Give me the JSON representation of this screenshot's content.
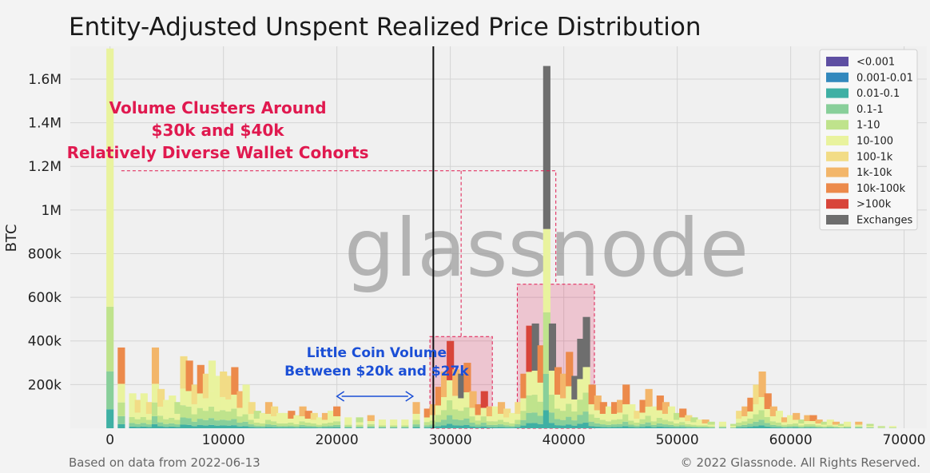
{
  "chart_data": {
    "type": "bar",
    "stacked": true,
    "title": "Entity-Adjusted Unspent Realized Price Distribution",
    "xlabel": "",
    "ylabel": "BTC",
    "xlim": [
      -3500,
      72000
    ],
    "ylim": [
      0,
      1750000
    ],
    "bin_width": 700,
    "x_ticks": [
      0,
      10000,
      20000,
      30000,
      40000,
      50000,
      60000,
      70000
    ],
    "x_tick_labels": [
      "0",
      "10000",
      "20000",
      "30000",
      "40000",
      "50000",
      "60000",
      "70000"
    ],
    "y_ticks": [
      200000,
      400000,
      600000,
      800000,
      1000000,
      1200000,
      1400000,
      1600000
    ],
    "y_tick_labels": [
      "200k",
      "400k",
      "600k",
      "800k",
      "1M",
      "1.2M",
      "1.4M",
      "1.6M"
    ],
    "grid": true,
    "legend_position": "top-right",
    "cohorts": [
      {
        "name": "<0.001",
        "color": "#5e4fa2"
      },
      {
        "name": "0.001-0.01",
        "color": "#3288bd"
      },
      {
        "name": "0.01-0.1",
        "color": "#3fb0a4"
      },
      {
        "name": "0.1-1",
        "color": "#88cf9a"
      },
      {
        "name": "1-10",
        "color": "#bfe38c"
      },
      {
        "name": "10-100",
        "color": "#e9f39e"
      },
      {
        "name": "100-1k",
        "color": "#f2dc86"
      },
      {
        "name": "1k-10k",
        "color": "#f3b66a"
      },
      {
        "name": "10k-100k",
        "color": "#ec8a4b"
      },
      {
        "name": ">100k",
        "color": "#d8453a"
      },
      {
        "name": "Exchanges",
        "color": "#6e6e6e"
      }
    ],
    "x": [
      0,
      1000,
      2000,
      2500,
      3000,
      3500,
      4000,
      4500,
      5000,
      5500,
      6000,
      6500,
      7000,
      7500,
      8000,
      8500,
      9000,
      9500,
      10000,
      10500,
      11000,
      11500,
      12000,
      12500,
      13000,
      13500,
      14000,
      14500,
      15000,
      15500,
      16000,
      16500,
      17000,
      17500,
      18000,
      18500,
      19000,
      19500,
      20000,
      21000,
      22000,
      23000,
      24000,
      25000,
      26000,
      27000,
      28000,
      28500,
      29000,
      29500,
      30000,
      30500,
      31000,
      31500,
      32000,
      32500,
      33000,
      33500,
      34000,
      34500,
      35000,
      35500,
      36000,
      36500,
      37000,
      37500,
      38000,
      38500,
      39000,
      39500,
      40000,
      40500,
      41000,
      41500,
      42000,
      42500,
      43000,
      43500,
      44000,
      44500,
      45000,
      45500,
      46000,
      46500,
      47000,
      47500,
      48000,
      48500,
      49000,
      49500,
      50000,
      50500,
      51000,
      51500,
      52000,
      52500,
      53000,
      54000,
      55000,
      55500,
      56000,
      56500,
      57000,
      57500,
      58000,
      58500,
      59000,
      59500,
      60000,
      60500,
      61000,
      61500,
      62000,
      62500,
      63000,
      63500,
      64000,
      64500,
      65000,
      66000,
      67000,
      68000,
      69000
    ],
    "totals": [
      1740000,
      370000,
      160000,
      130000,
      160000,
      120000,
      370000,
      180000,
      130000,
      150000,
      120000,
      330000,
      310000,
      200000,
      290000,
      250000,
      310000,
      240000,
      260000,
      240000,
      280000,
      170000,
      200000,
      120000,
      80000,
      70000,
      120000,
      100000,
      70000,
      70000,
      80000,
      60000,
      100000,
      80000,
      70000,
      50000,
      70000,
      80000,
      100000,
      50000,
      50000,
      60000,
      40000,
      40000,
      40000,
      120000,
      90000,
      110000,
      190000,
      260000,
      400000,
      270000,
      250000,
      300000,
      170000,
      110000,
      170000,
      100000,
      100000,
      120000,
      90000,
      70000,
      120000,
      250000,
      470000,
      480000,
      380000,
      1660000,
      480000,
      280000,
      250000,
      350000,
      240000,
      410000,
      510000,
      200000,
      150000,
      120000,
      100000,
      120000,
      130000,
      200000,
      110000,
      80000,
      130000,
      180000,
      100000,
      150000,
      120000,
      100000,
      70000,
      90000,
      60000,
      50000,
      40000,
      40000,
      30000,
      30000,
      20000,
      80000,
      100000,
      140000,
      200000,
      260000,
      160000,
      100000,
      80000,
      50000,
      60000,
      70000,
      40000,
      60000,
      60000,
      40000,
      30000,
      40000,
      30000,
      20000,
      30000,
      30000,
      20000,
      10000,
      10000,
      5000,
      5000
    ],
    "dominant_cohort": [
      "10-100",
      "10k-100k",
      "10-100",
      "100-1k",
      "10-100",
      "100-1k",
      "1k-10k",
      "100-1k",
      "10-100",
      "10-100",
      "1-10",
      "100-1k",
      "10k-100k",
      "100-1k",
      "10k-100k",
      "100-1k",
      "10-100",
      "10-100",
      "100-1k",
      "100-1k",
      "10k-100k",
      "1k-10k",
      "10-100",
      "100-1k",
      "1-10",
      "10-100",
      "1k-10k",
      "100-1k",
      "10-100",
      "10-100",
      "10k-100k",
      "10-100",
      "1k-10k",
      "10k-100k",
      "100-1k",
      "10-100",
      "1k-10k",
      "10-100",
      "10k-100k",
      "10-100",
      "1-10",
      "1k-10k",
      "10-100",
      "10-100",
      "10-100",
      "1k-10k",
      "10k-100k",
      "1k-10k",
      "10k-100k",
      "1k-10k",
      ">100k",
      "1k-10k",
      "Exchanges",
      "10k-100k",
      "1k-10k",
      "10k-100k",
      ">100k",
      "1k-10k",
      "10-100",
      "1k-10k",
      "100-1k",
      "10-100",
      "100-1k",
      "10k-100k",
      ">100k",
      "Exchanges",
      "10k-100k",
      "Exchanges",
      "Exchanges",
      "10k-100k",
      "1k-10k",
      "10k-100k",
      "Exchanges",
      "Exchanges",
      "Exchanges",
      "10k-100k",
      "1k-10k",
      "10k-100k",
      "10-100",
      "10k-100k",
      "1k-10k",
      "10k-100k",
      "10-100",
      "100-1k",
      "10k-100k",
      "1k-10k",
      "10-100",
      "10k-100k",
      "1k-10k",
      "10-100",
      "1-10",
      "10k-100k",
      "100-1k",
      "1-10",
      "10-100",
      "1k-10k",
      "1-10",
      "10-100",
      "1-10",
      "100-1k",
      "1k-10k",
      "10k-100k",
      "100-1k",
      "1k-10k",
      "10k-100k",
      "1k-10k",
      "10-100",
      "1k-10k",
      "10-100",
      "1k-10k",
      "1-10",
      "1k-10k",
      "10k-100k",
      "1k-10k",
      "1-10",
      "10-100",
      "1k-10k",
      "1-10",
      "10-100",
      "1k-10k",
      "1-10",
      "1-10",
      "10-100",
      "1-10",
      "10-100"
    ],
    "reference_line": {
      "x": 28500,
      "label": ""
    },
    "annotations": [
      {
        "text_lines": [
          "Volume Clusters Around",
          "$30k and $40k",
          "Relatively Diverse Wallet Cohorts"
        ],
        "color": "#e0194f"
      },
      {
        "text_lines": [
          "Little Coin Volume",
          "Between $20k and $27k"
        ],
        "color": "#1b4fd6",
        "arrow_range": [
          20000,
          26700
        ]
      }
    ],
    "highlight_boxes": [
      {
        "x_range": [
          28200,
          33700
        ],
        "y_range": [
          0,
          420000
        ]
      },
      {
        "x_range": [
          35900,
          42700
        ],
        "y_range": [
          0,
          660000
        ]
      }
    ],
    "watermark": "glassnode"
  },
  "footer": {
    "left": "Based on data from 2022-06-13",
    "right": "© 2022 Glassnode. All Rights Reserved."
  }
}
